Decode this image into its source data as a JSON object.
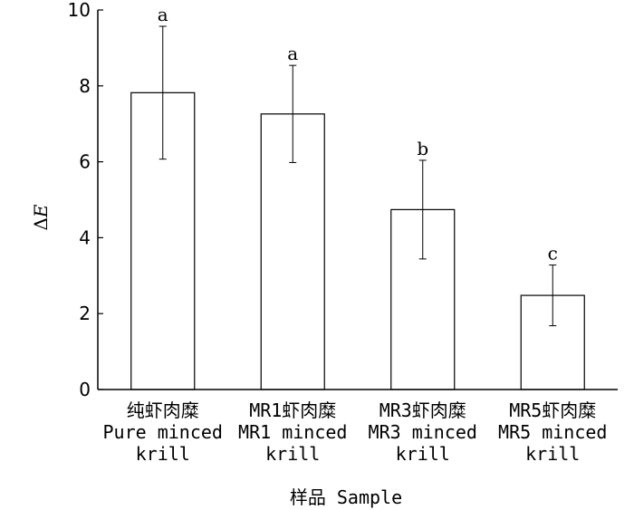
{
  "chart_data": {
    "type": "bar",
    "title": "",
    "xlabel": "样品 Sample",
    "ylabel": "ΔE",
    "ylabel_parts": {
      "delta": "Δ",
      "var": "E"
    },
    "ylim": [
      0,
      10
    ],
    "yticks": [
      0,
      2,
      4,
      6,
      8,
      10
    ],
    "grid": false,
    "legend": "none",
    "categories": [
      {
        "lines": [
          "纯虾肉糜",
          "Pure minced",
          "krill"
        ]
      },
      {
        "lines": [
          "MR1虾肉糜",
          "MR1 minced",
          "krill"
        ]
      },
      {
        "lines": [
          "MR3虾肉糜",
          "MR3 minced",
          "krill"
        ]
      },
      {
        "lines": [
          "MR5虾肉糜",
          "MR5 minced",
          "krill"
        ]
      }
    ],
    "values": [
      7.82,
      7.26,
      4.74,
      2.48
    ],
    "errors": [
      1.75,
      1.28,
      1.3,
      0.8
    ],
    "significance": [
      "a",
      "a",
      "b",
      "c"
    ],
    "bar_fill": "#ffffff",
    "bar_stroke": "#000000"
  }
}
